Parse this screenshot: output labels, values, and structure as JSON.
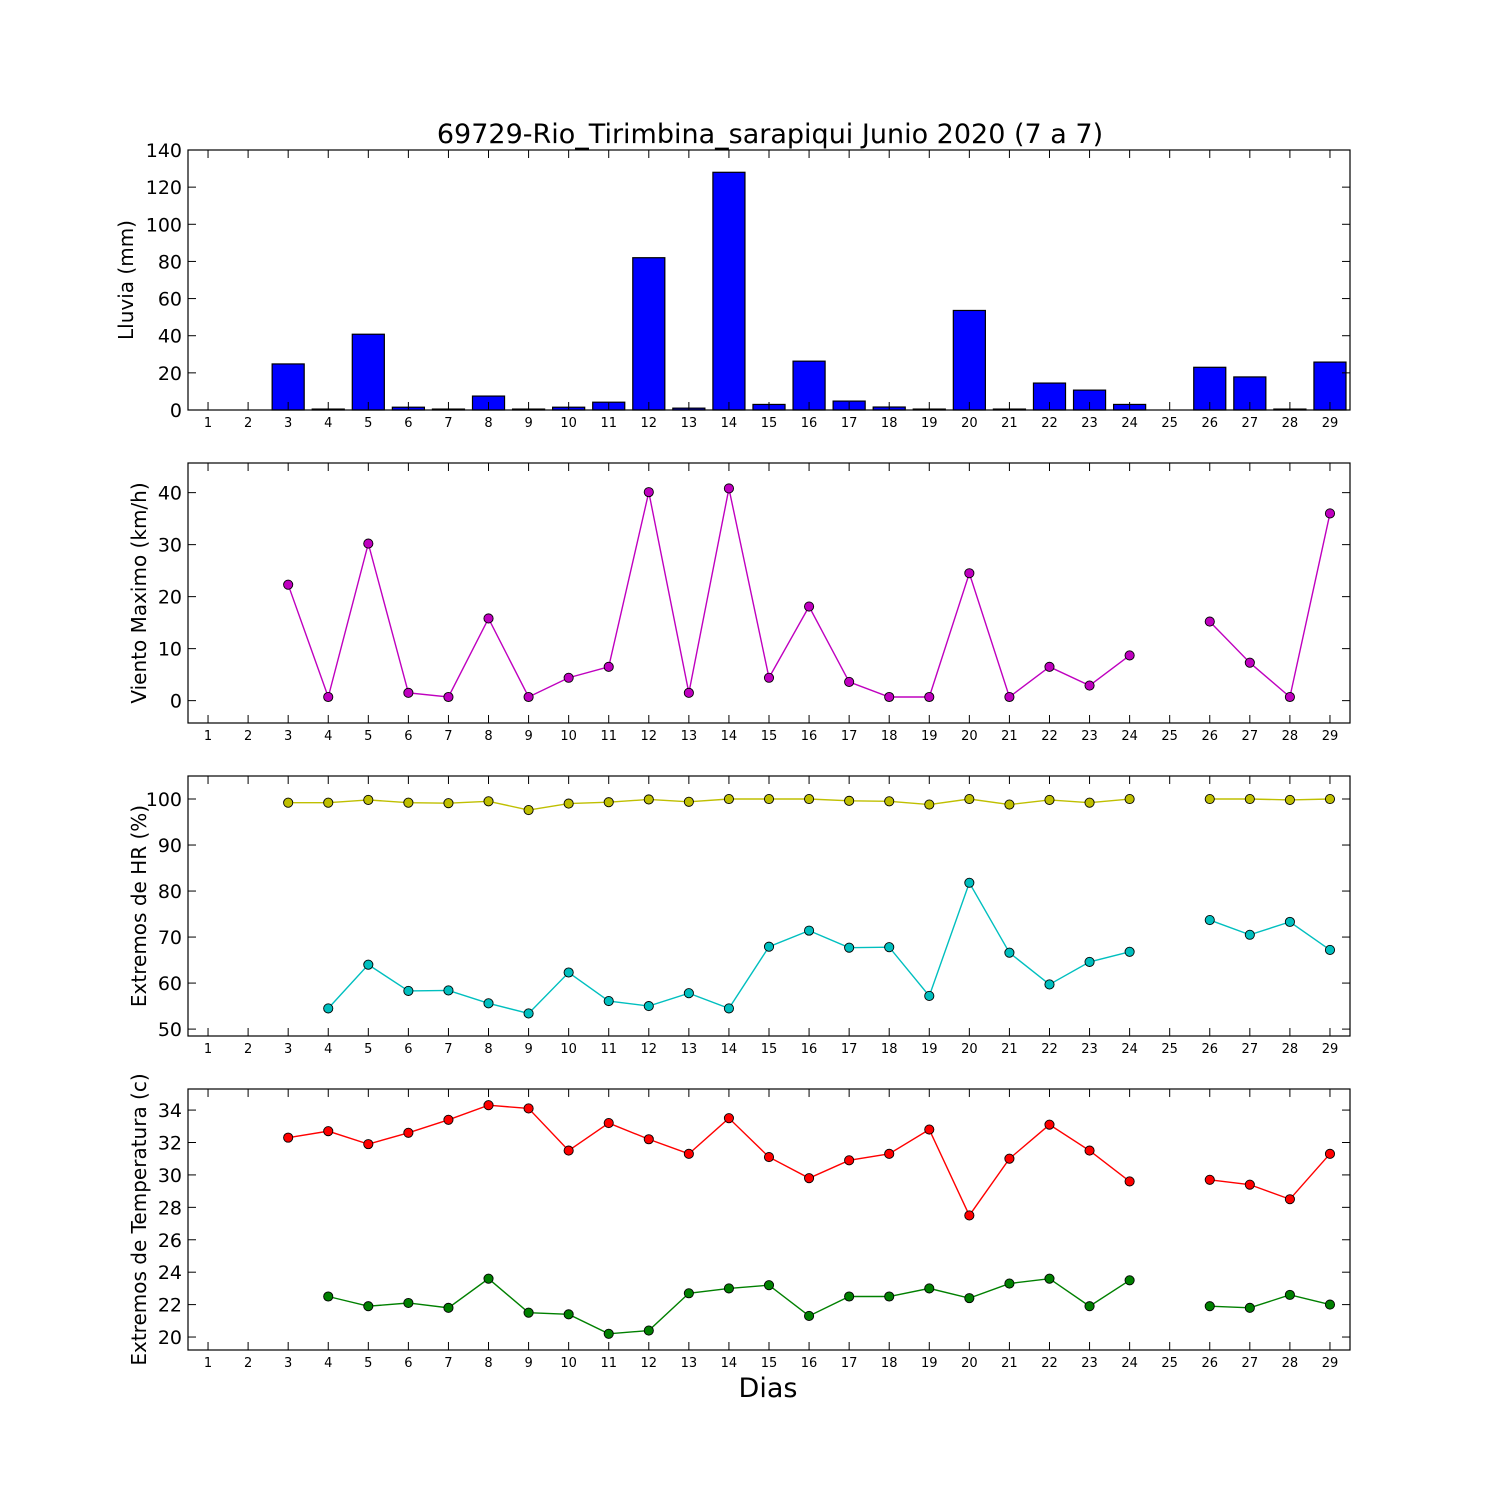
{
  "title": "69729-Rio_Tirimbina_sarapiqui Junio 2020  (7 a 7)",
  "xlabel": "Dias",
  "chart_data": [
    {
      "type": "bar",
      "ylabel": "Lluvia (mm)",
      "x": [
        1,
        2,
        3,
        4,
        5,
        6,
        7,
        8,
        9,
        10,
        11,
        12,
        13,
        14,
        15,
        16,
        17,
        18,
        19,
        20,
        21,
        22,
        23,
        24,
        25,
        26,
        27,
        28,
        29
      ],
      "xlim": [
        0.5,
        29.5
      ],
      "ylim": [
        0,
        140
      ],
      "yticks": [
        0,
        20,
        40,
        60,
        80,
        100,
        120,
        140
      ],
      "color": "#0000ff",
      "values": [
        0,
        0,
        24.8,
        0.5,
        40.8,
        1.5,
        0.5,
        7.5,
        0.5,
        1.5,
        4.2,
        82.0,
        1.0,
        128.0,
        3.0,
        26.3,
        4.8,
        1.6,
        0.5,
        53.6,
        0.5,
        14.5,
        10.7,
        3.0,
        0,
        23.0,
        17.8,
        0.5,
        25.8
      ]
    },
    {
      "type": "line",
      "ylabel": "Viento Maximo (km/h)",
      "x": [
        1,
        2,
        3,
        4,
        5,
        6,
        7,
        8,
        9,
        10,
        11,
        12,
        13,
        14,
        15,
        16,
        17,
        18,
        19,
        20,
        21,
        22,
        23,
        24,
        25,
        26,
        27,
        28,
        29
      ],
      "xlim": [
        0.5,
        29.5
      ],
      "ylim": [
        -4.3,
        45.7
      ],
      "yticks": [
        0,
        10,
        20,
        30,
        40
      ],
      "series": [
        {
          "color": "#bf00bf",
          "values": [
            null,
            null,
            22.3,
            0.7,
            30.2,
            1.5,
            0.7,
            15.8,
            0.7,
            4.4,
            6.5,
            40.1,
            1.5,
            40.8,
            4.4,
            18.1,
            3.6,
            0.7,
            0.7,
            24.5,
            0.7,
            6.5,
            2.9,
            8.7,
            null,
            15.2,
            7.3,
            0.7,
            36.0
          ]
        }
      ]
    },
    {
      "type": "line",
      "ylabel": "Extremos de HR (%)",
      "x": [
        1,
        2,
        3,
        4,
        5,
        6,
        7,
        8,
        9,
        10,
        11,
        12,
        13,
        14,
        15,
        16,
        17,
        18,
        19,
        20,
        21,
        22,
        23,
        24,
        25,
        26,
        27,
        28,
        29
      ],
      "xlim": [
        0.5,
        29.5
      ],
      "ylim": [
        48.5,
        105
      ],
      "yticks": [
        50,
        60,
        70,
        80,
        90,
        100
      ],
      "series": [
        {
          "color": "#bfbf00",
          "values": [
            null,
            null,
            99.2,
            99.2,
            99.8,
            99.2,
            99.1,
            99.5,
            97.6,
            99.0,
            99.3,
            99.9,
            99.4,
            100,
            100,
            100,
            99.6,
            99.5,
            98.8,
            100,
            98.8,
            99.8,
            99.2,
            100,
            null,
            100,
            100,
            99.8,
            100
          ]
        },
        {
          "color": "#00bfbf",
          "values": [
            null,
            null,
            null,
            54.5,
            64.0,
            58.3,
            58.4,
            55.6,
            53.4,
            62.3,
            56.1,
            55.0,
            57.8,
            54.5,
            67.9,
            71.4,
            67.7,
            67.8,
            57.2,
            81.8,
            66.6,
            59.7,
            64.6,
            66.8,
            null,
            73.7,
            70.5,
            73.3,
            67.2
          ]
        }
      ]
    },
    {
      "type": "line",
      "ylabel": "Extremos de Temperatura (c)",
      "x": [
        1,
        2,
        3,
        4,
        5,
        6,
        7,
        8,
        9,
        10,
        11,
        12,
        13,
        14,
        15,
        16,
        17,
        18,
        19,
        20,
        21,
        22,
        23,
        24,
        25,
        26,
        27,
        28,
        29
      ],
      "xlim": [
        0.5,
        29.5
      ],
      "ylim": [
        19.2,
        35.3
      ],
      "yticks": [
        20,
        22,
        24,
        26,
        28,
        30,
        32,
        34
      ],
      "series": [
        {
          "color": "#ff0000",
          "values": [
            null,
            null,
            32.3,
            32.7,
            31.9,
            32.6,
            33.4,
            34.3,
            34.1,
            31.5,
            33.2,
            32.2,
            31.3,
            33.5,
            31.1,
            29.8,
            30.9,
            31.3,
            32.8,
            27.5,
            31.0,
            33.1,
            31.5,
            29.6,
            null,
            29.7,
            29.4,
            28.5,
            31.3
          ]
        },
        {
          "color": "#008000",
          "values": [
            null,
            null,
            null,
            22.5,
            21.9,
            22.1,
            21.8,
            23.6,
            21.5,
            21.4,
            20.2,
            20.4,
            22.7,
            23.0,
            23.2,
            21.3,
            22.5,
            22.5,
            23.0,
            22.4,
            23.3,
            23.6,
            21.9,
            23.5,
            null,
            21.9,
            21.8,
            22.6,
            22.0
          ]
        }
      ]
    }
  ]
}
